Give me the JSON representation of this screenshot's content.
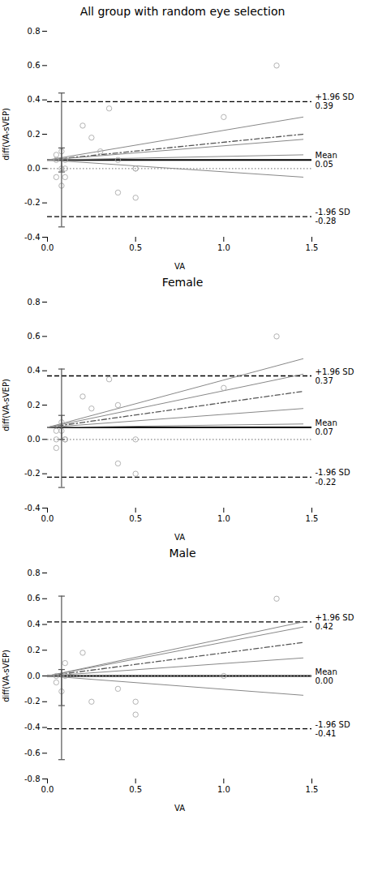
{
  "chart_data": [
    {
      "type": "scatter",
      "title": "All group with random eye selection",
      "xlabel": "VA",
      "ylabel": "diff(VA-sVEP)",
      "xlim": [
        0.0,
        1.5
      ],
      "xticks": [
        {
          "value": 0.0,
          "label": "0.0"
        },
        0.5,
        {
          "value": 1.0,
          "label": "1.0"
        },
        1.5
      ],
      "ylim": [
        -0.4,
        0.8
      ],
      "yticks": [
        -0.4,
        -0.2,
        {
          "value": 0.0,
          "label": "0.0"
        },
        0.2,
        0.4,
        0.6,
        0.8
      ],
      "grid": false,
      "hlines": [
        {
          "y": 0.39,
          "line_style": "dashed",
          "color": "#000000",
          "label": "+1.96 SD",
          "value_label": "0.39"
        },
        {
          "y": -0.28,
          "line_style": "dashed",
          "color": "#000000",
          "label": "-1.96 SD",
          "value_label": "-0.28"
        },
        {
          "y": 0.05,
          "line_style": "solid",
          "color": "#000000",
          "label": "Mean",
          "value_label": "0.05"
        },
        {
          "y": 0.0,
          "line_style": "dotted",
          "color": "#888888"
        }
      ],
      "series": [
        {
          "type": "line",
          "line_style": "dashdot",
          "color": "#555555",
          "x": [
            0.0,
            1.45
          ],
          "y": [
            0.05,
            0.2
          ]
        },
        {
          "type": "line",
          "line_style": "solid",
          "color": "#888888",
          "x": [
            0.0,
            1.45
          ],
          "y": [
            0.05,
            0.17
          ]
        },
        {
          "type": "line",
          "line_style": "solid",
          "color": "#888888",
          "x": [
            0.0,
            1.45
          ],
          "y": [
            0.05,
            0.08
          ]
        },
        {
          "type": "line",
          "line_style": "solid",
          "color": "#888888",
          "x": [
            0.0,
            1.45
          ],
          "y": [
            0.05,
            0.3
          ]
        },
        {
          "type": "line",
          "line_style": "solid",
          "color": "#888888",
          "x": [
            0.0,
            1.45
          ],
          "y": [
            0.05,
            -0.05
          ]
        },
        {
          "type": "scatter",
          "marker": "open_circle",
          "color": "#aaaaaa",
          "x": [
            0.05,
            0.05,
            0.05,
            0.08,
            0.08,
            0.08,
            0.1,
            0.1,
            0.1,
            0.2,
            0.25,
            0.3,
            0.35,
            0.4,
            0.4,
            0.5,
            0.5,
            0.5,
            1.0,
            1.3
          ],
          "y": [
            -0.05,
            0.05,
            0.08,
            -0.1,
            0.0,
            0.1,
            -0.05,
            0.0,
            0.05,
            0.25,
            0.18,
            0.1,
            0.35,
            0.05,
            -0.14,
            -0.17,
            0.0,
            0.0,
            0.3,
            0.6
          ]
        }
      ],
      "error_bars": [
        {
          "x": 0.08,
          "y": 0.05,
          "lower": -0.34,
          "upper": 0.44,
          "color": "#555555"
        },
        {
          "x": 0.08,
          "y": 0.05,
          "lower": -0.02,
          "upper": 0.12,
          "color": "#555555"
        }
      ]
    },
    {
      "type": "scatter",
      "title": "Female",
      "xlabel": "VA",
      "ylabel": "diff(VA-sVEP)",
      "xlim": [
        0.0,
        1.5
      ],
      "xticks": [
        {
          "value": 0.0,
          "label": "0.0"
        },
        0.5,
        {
          "value": 1.0,
          "label": "1.0"
        },
        1.5
      ],
      "ylim": [
        -0.4,
        0.8
      ],
      "yticks": [
        -0.4,
        -0.2,
        {
          "value": 0.0,
          "label": "0.0"
        },
        0.2,
        0.4,
        0.6,
        0.8
      ],
      "grid": false,
      "hlines": [
        {
          "y": 0.37,
          "line_style": "dashed",
          "color": "#000000",
          "label": "+1.96 SD",
          "value_label": "0.37"
        },
        {
          "y": -0.22,
          "line_style": "dashed",
          "color": "#000000",
          "label": "-1.96 SD",
          "value_label": "-0.22"
        },
        {
          "y": 0.07,
          "line_style": "solid",
          "color": "#000000",
          "label": "Mean",
          "value_label": "0.07"
        },
        {
          "y": 0.0,
          "line_style": "dotted",
          "color": "#888888"
        }
      ],
      "series": [
        {
          "type": "line",
          "line_style": "dashdot",
          "color": "#555555",
          "x": [
            0.0,
            1.45
          ],
          "y": [
            0.07,
            0.28
          ]
        },
        {
          "type": "line",
          "line_style": "solid",
          "color": "#888888",
          "x": [
            0.0,
            1.45
          ],
          "y": [
            0.07,
            0.38
          ]
        },
        {
          "type": "line",
          "line_style": "solid",
          "color": "#888888",
          "x": [
            0.0,
            1.45
          ],
          "y": [
            0.07,
            0.18
          ]
        },
        {
          "type": "line",
          "line_style": "solid",
          "color": "#888888",
          "x": [
            0.0,
            1.45
          ],
          "y": [
            0.07,
            0.47
          ]
        },
        {
          "type": "line",
          "line_style": "solid",
          "color": "#888888",
          "x": [
            0.0,
            1.45
          ],
          "y": [
            0.07,
            0.09
          ]
        },
        {
          "type": "scatter",
          "marker": "open_circle",
          "color": "#aaaaaa",
          "x": [
            0.05,
            0.05,
            0.05,
            0.08,
            0.08,
            0.1,
            0.1,
            0.2,
            0.25,
            0.35,
            0.4,
            0.4,
            0.5,
            0.5,
            1.0,
            1.3
          ],
          "y": [
            0.0,
            0.05,
            -0.05,
            0.05,
            0.1,
            0.0,
            0.0,
            0.25,
            0.18,
            0.35,
            0.2,
            -0.14,
            -0.2,
            0.0,
            0.3,
            0.6
          ]
        }
      ],
      "error_bars": [
        {
          "x": 0.08,
          "y": 0.07,
          "lower": -0.28,
          "upper": 0.41,
          "color": "#555555"
        },
        {
          "x": 0.08,
          "y": 0.07,
          "lower": 0.0,
          "upper": 0.14,
          "color": "#555555"
        }
      ]
    },
    {
      "type": "scatter",
      "title": "Male",
      "xlabel": "VA",
      "ylabel": "diff(VA-sVEP)",
      "xlim": [
        0.0,
        1.5
      ],
      "xticks": [
        {
          "value": 0.0,
          "label": "0.0"
        },
        0.5,
        {
          "value": 1.0,
          "label": "1.0"
        },
        1.5
      ],
      "ylim": [
        -0.8,
        0.8
      ],
      "yticks": [
        -0.8,
        -0.6,
        -0.4,
        -0.2,
        {
          "value": 0.0,
          "label": "0.0"
        },
        0.2,
        0.4,
        0.6,
        0.8
      ],
      "grid": false,
      "hlines": [
        {
          "y": 0.42,
          "line_style": "dashed",
          "color": "#000000",
          "label": "+1.96 SD",
          "value_label": "0.42"
        },
        {
          "y": -0.41,
          "line_style": "dashed",
          "color": "#000000",
          "label": "-1.96 SD",
          "value_label": "-0.41"
        },
        {
          "y": 0.0,
          "line_style": "solid",
          "color": "#000000",
          "label": "Mean",
          "value_label": "0.00"
        },
        {
          "y": 0.0,
          "line_style": "dotted",
          "color": "#888888"
        }
      ],
      "series": [
        {
          "type": "line",
          "line_style": "dashdot",
          "color": "#555555",
          "x": [
            0.0,
            1.45
          ],
          "y": [
            0.0,
            0.26
          ]
        },
        {
          "type": "line",
          "line_style": "solid",
          "color": "#888888",
          "x": [
            0.0,
            1.45
          ],
          "y": [
            0.0,
            0.38
          ]
        },
        {
          "type": "line",
          "line_style": "solid",
          "color": "#888888",
          "x": [
            0.0,
            1.45
          ],
          "y": [
            0.0,
            0.14
          ]
        },
        {
          "type": "line",
          "line_style": "solid",
          "color": "#888888",
          "x": [
            0.0,
            1.45
          ],
          "y": [
            0.0,
            0.42
          ]
        },
        {
          "type": "line",
          "line_style": "solid",
          "color": "#888888",
          "x": [
            0.0,
            1.45
          ],
          "y": [
            0.0,
            -0.15
          ]
        },
        {
          "type": "scatter",
          "marker": "open_circle",
          "color": "#aaaaaa",
          "x": [
            0.05,
            0.05,
            0.08,
            0.1,
            0.1,
            0.2,
            0.25,
            0.4,
            0.5,
            0.5,
            1.0,
            1.3
          ],
          "y": [
            0.0,
            -0.05,
            -0.12,
            0.1,
            0.0,
            0.18,
            -0.2,
            -0.1,
            -0.3,
            -0.2,
            0.0,
            0.6
          ]
        }
      ],
      "error_bars": [
        {
          "x": 0.08,
          "y": 0.0,
          "lower": -0.65,
          "upper": 0.62,
          "color": "#555555"
        },
        {
          "x": 0.08,
          "y": 0.0,
          "lower": -0.23,
          "upper": 0.05,
          "color": "#555555"
        }
      ]
    }
  ]
}
